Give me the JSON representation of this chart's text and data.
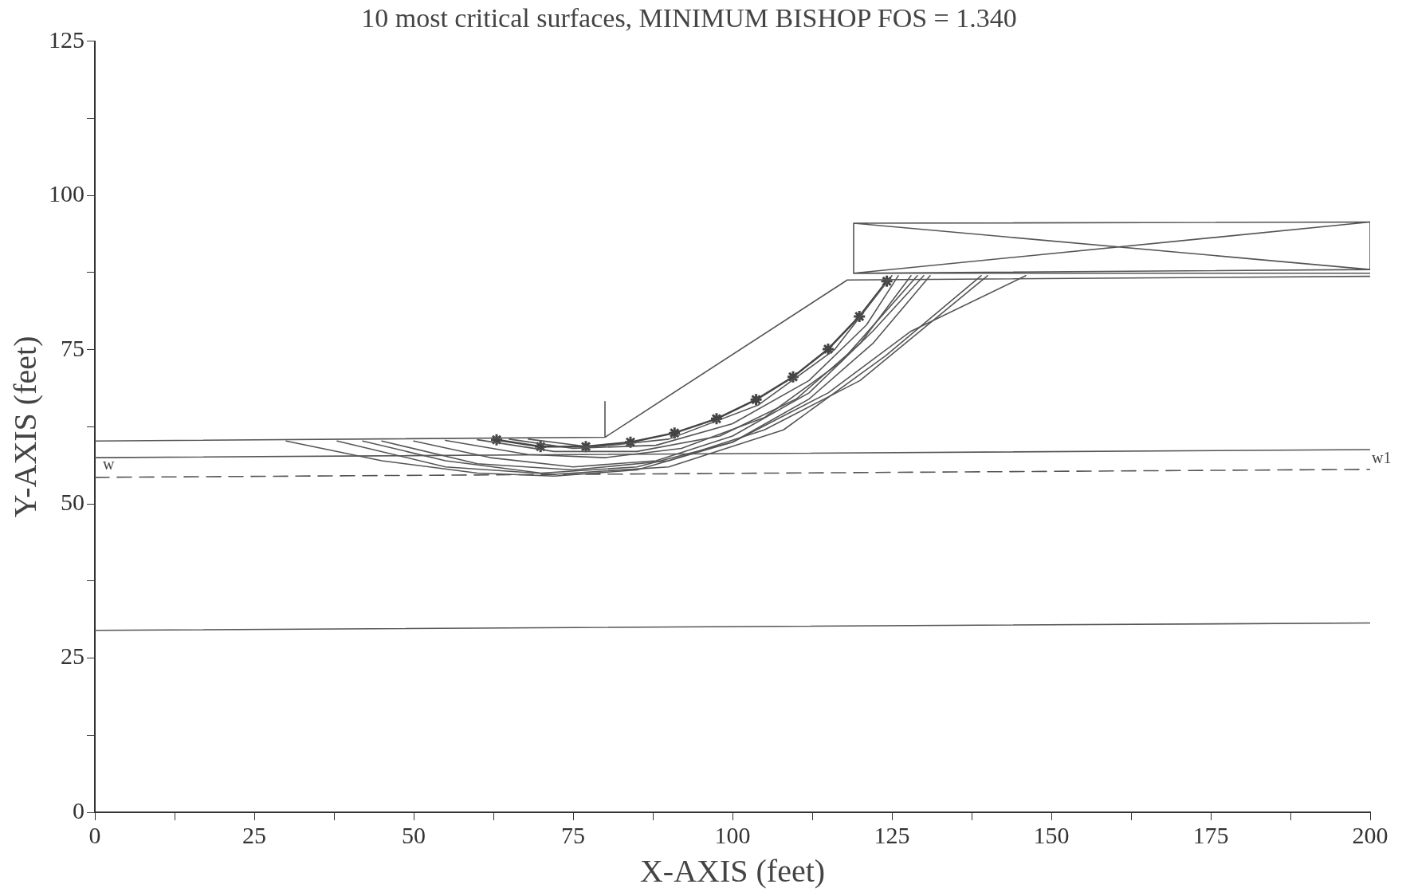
{
  "chart_data": {
    "type": "line",
    "title": "10 most critical surfaces, MINIMUM BISHOP FOS = 1.340",
    "xlabel": "X-AXIS (feet)",
    "ylabel": "Y-AXIS (feet)",
    "xlim": [
      0,
      200
    ],
    "ylim": [
      0,
      125
    ],
    "xticks": [
      0,
      {
        "value": 12.5,
        "label": null
      },
      25,
      {
        "value": 37.5,
        "label": null
      },
      50,
      {
        "value": 62.5,
        "label": null
      },
      75,
      {
        "value": 87.5,
        "label": null
      },
      100,
      {
        "value": 112.5,
        "label": null
      },
      125,
      {
        "value": 137.5,
        "label": null
      },
      150,
      {
        "value": 162.5,
        "label": null
      },
      175,
      {
        "value": 187.5,
        "label": null
      },
      200
    ],
    "yticks": [
      0,
      {
        "value": 12.5,
        "label": null
      },
      25,
      {
        "value": 37.5,
        "label": null
      },
      50,
      {
        "value": 62.5,
        "label": null
      },
      75,
      {
        "value": 87.5,
        "label": null
      },
      100,
      {
        "value": 112.5,
        "label": null
      },
      125
    ],
    "grid": false,
    "legend": false,
    "marker": "none",
    "line_style": "solid",
    "annotations": [
      {
        "text": "w",
        "x": 1,
        "y": 55
      },
      {
        "text": "w1",
        "x": 200,
        "y": 56
      }
    ],
    "series": [
      {
        "color": "#555555",
        "x": [
          0,
          80,
          80,
          80,
          118,
          200
        ],
        "values": [
          60.2,
          60.8,
          66.6,
          60.8,
          86.3,
          86.9
        ]
      },
      {
        "color": "#555555",
        "x": [
          119,
          200
        ],
        "values": [
          87.4,
          87.4
        ]
      },
      {
        "color": "#555555",
        "x": [
          119,
          119,
          200,
          200,
          119,
          200,
          119,
          200
        ],
        "values": [
          87.4,
          95.5,
          95.7,
          88,
          87.4,
          95.7,
          95.5,
          88
        ]
      },
      {
        "color": "#555555",
        "x": [
          0,
          200
        ],
        "values": [
          57.5,
          58.8
        ]
      },
      {
        "color": "#555555",
        "x": [
          0,
          200
        ],
        "values": [
          29.5,
          30.7
        ]
      },
      {
        "color": "#555555",
        "line_style": "dashed",
        "x": [
          0,
          200
        ],
        "values": [
          54.3,
          55.6
        ]
      },
      {
        "color": "#555555",
        "x": [
          30,
          45,
          60,
          72,
          85,
          100,
          115,
          128,
          146
        ],
        "values": [
          60.2,
          57,
          55,
          54.5,
          55.5,
          60,
          68,
          78,
          87
        ]
      },
      {
        "color": "#555555",
        "x": [
          42,
          55,
          70,
          85,
          100,
          112,
          122,
          131
        ],
        "values": [
          60.2,
          57,
          55,
          56,
          60,
          67,
          76,
          87
        ]
      },
      {
        "color": "#555555",
        "x": [
          50,
          62,
          75,
          88,
          100,
          112,
          122,
          130
        ],
        "values": [
          60.2,
          57.5,
          56,
          57,
          61,
          68,
          78,
          87
        ]
      },
      {
        "color": "#555555",
        "x": [
          55,
          68,
          80,
          92,
          105,
          117,
          129
        ],
        "values": [
          60.3,
          58,
          57.5,
          59,
          64,
          73,
          87
        ]
      },
      {
        "color": "#555555",
        "x": [
          60,
          72,
          85,
          98,
          110,
          120,
          128
        ],
        "values": [
          60.4,
          58.5,
          58.5,
          61,
          67,
          76,
          87
        ]
      },
      {
        "color": "#555555",
        "x": [
          45,
          60,
          75,
          90,
          105,
          120,
          140
        ],
        "values": [
          60.2,
          56.5,
          55.5,
          57,
          62,
          70,
          87
        ]
      },
      {
        "color": "#555555",
        "x": [
          65,
          75,
          88,
          100,
          112,
          121,
          126
        ],
        "values": [
          60.5,
          59,
          59.5,
          63,
          70,
          79,
          87
        ]
      },
      {
        "color": "#555555",
        "x": [
          38,
          55,
          72,
          90,
          108,
          124,
          139
        ],
        "values": [
          60.2,
          56,
          54.8,
          56,
          62,
          74,
          87
        ]
      },
      {
        "color": "#555555",
        "x": [
          68,
          78,
          90,
          104,
          116,
          125
        ],
        "values": [
          60.5,
          59.2,
          60.5,
          66,
          75,
          87
        ]
      },
      {
        "color": "#444444",
        "marker": "cross",
        "x": [
          63,
          69.9,
          77,
          84,
          90.9,
          97.5,
          103.7,
          109.5,
          115,
          119.9,
          124.2
        ],
        "values": [
          60.4,
          59.3,
          59.3,
          60,
          61.5,
          63.8,
          66.9,
          70.6,
          75.1,
          80.4,
          86.1
        ]
      }
    ]
  }
}
